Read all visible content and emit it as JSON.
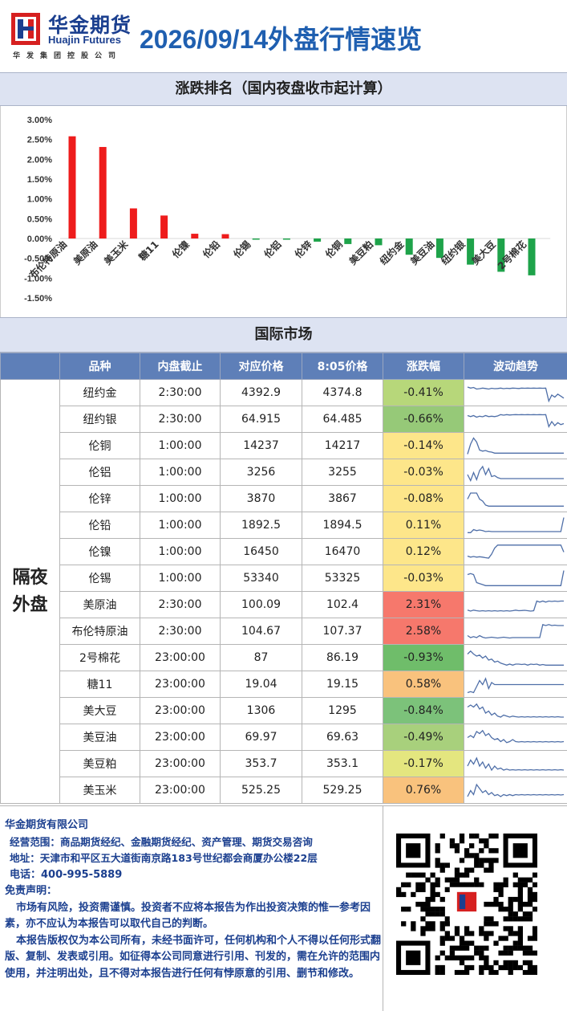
{
  "header": {
    "brand_cn": "华金期货",
    "brand_en": "Huajin Futures",
    "brand_sub": "华发集团控股公司",
    "title": "2026/09/14外盘行情速览"
  },
  "ranking_title": "涨跌排名（国内夜盘收市起计算）",
  "chart_data": {
    "type": "bar",
    "title": "涨跌排名（国内夜盘收市起计算）",
    "categories": [
      "布伦特原油",
      "美原油",
      "美玉米",
      "糖11",
      "伦镍",
      "伦铅",
      "伦锡",
      "伦铝",
      "伦锌",
      "伦铜",
      "美豆粕",
      "纽约金",
      "美豆油",
      "纽约银",
      "美大豆",
      "2号棉花"
    ],
    "values": [
      2.58,
      2.31,
      0.76,
      0.58,
      0.12,
      0.11,
      -0.03,
      -0.03,
      -0.08,
      -0.14,
      -0.17,
      -0.41,
      -0.49,
      -0.66,
      -0.84,
      -0.93
    ],
    "y_ticks": [
      "3.00%",
      "2.50%",
      "2.00%",
      "1.50%",
      "1.00%",
      "0.50%",
      "0.00%",
      "-0.50%",
      "-1.00%",
      "-1.50%"
    ],
    "ylim": [
      -1.5,
      3.0
    ],
    "colors": {
      "positive": "#ee1c1c",
      "negative": "#1ea34a"
    },
    "grid": false
  },
  "intl_title": "国际市场",
  "table": {
    "headers": [
      "",
      "品种",
      "内盘截止",
      "对应价格",
      "8:05价格",
      "涨跌幅",
      "波动趋势"
    ],
    "group_label": "隔夜外盘",
    "rows": [
      {
        "name": "纽约金",
        "cutoff": "2:30:00",
        "ref_price": "4392.9",
        "price_805": "4374.8",
        "change": "-0.41%",
        "color": "#b7d77a",
        "trend": [
          0.2,
          0.25,
          0.22,
          0.3,
          0.28,
          0.25,
          0.27,
          0.3,
          0.26,
          0.28,
          0.27,
          0.25,
          0.28,
          0.26,
          0.27,
          0.25,
          0.26,
          0.27,
          0.25,
          0.26,
          0.25,
          0.26,
          0.25,
          0.26,
          0.25,
          0.26,
          0.25,
          0.9,
          0.6,
          0.7,
          0.55,
          0.65,
          0.75
        ]
      },
      {
        "name": "纽约银",
        "cutoff": "2:30:00",
        "ref_price": "64.915",
        "price_805": "64.485",
        "change": "-0.66%",
        "color": "#96c978",
        "trend": [
          0.3,
          0.35,
          0.3,
          0.38,
          0.33,
          0.36,
          0.3,
          0.35,
          0.33,
          0.35,
          0.32,
          0.25,
          0.28,
          0.25,
          0.27,
          0.26,
          0.25,
          0.26,
          0.25,
          0.26,
          0.25,
          0.26,
          0.25,
          0.26,
          0.25,
          0.26,
          0.25,
          0.85,
          0.6,
          0.8,
          0.65,
          0.75,
          0.7
        ]
      },
      {
        "name": "伦铜",
        "cutoff": "1:00:00",
        "ref_price": "14237",
        "price_805": "14217",
        "change": "-0.14%",
        "color": "#fde68a",
        "trend": [
          0.9,
          0.4,
          0.1,
          0.3,
          0.7,
          0.75,
          0.72,
          0.78,
          0.8,
          0.85,
          0.85,
          0.85,
          0.85,
          0.85,
          0.85,
          0.85,
          0.85,
          0.85,
          0.85,
          0.85,
          0.85,
          0.85,
          0.85,
          0.85,
          0.85,
          0.85,
          0.85,
          0.85,
          0.85,
          0.85,
          0.85,
          0.85,
          0.85
        ]
      },
      {
        "name": "伦铝",
        "cutoff": "1:00:00",
        "ref_price": "3256",
        "price_805": "3255",
        "change": "-0.03%",
        "color": "#fde68a",
        "trend": [
          0.6,
          0.9,
          0.5,
          0.85,
          0.4,
          0.2,
          0.6,
          0.3,
          0.7,
          0.65,
          0.75,
          0.8,
          0.8,
          0.8,
          0.8,
          0.8,
          0.8,
          0.8,
          0.8,
          0.8,
          0.8,
          0.8,
          0.8,
          0.8,
          0.8,
          0.8,
          0.8,
          0.8,
          0.8,
          0.8,
          0.8,
          0.8,
          0.8
        ]
      },
      {
        "name": "伦锌",
        "cutoff": "1:00:00",
        "ref_price": "3870",
        "price_805": "3867",
        "change": "-0.08%",
        "color": "#fde68a",
        "trend": [
          0.5,
          0.2,
          0.2,
          0.2,
          0.5,
          0.6,
          0.8,
          0.85,
          0.85,
          0.85,
          0.85,
          0.85,
          0.85,
          0.85,
          0.85,
          0.85,
          0.85,
          0.85,
          0.85,
          0.85,
          0.85,
          0.85,
          0.85,
          0.85,
          0.85,
          0.85,
          0.85,
          0.85,
          0.85,
          0.85,
          0.85,
          0.85,
          0.85
        ]
      },
      {
        "name": "伦铅",
        "cutoff": "1:00:00",
        "ref_price": "1892.5",
        "price_805": "1894.5",
        "change": "0.11%",
        "color": "#fde68a",
        "trend": [
          0.85,
          0.85,
          0.7,
          0.75,
          0.72,
          0.75,
          0.8,
          0.78,
          0.8,
          0.8,
          0.8,
          0.8,
          0.8,
          0.8,
          0.8,
          0.8,
          0.8,
          0.8,
          0.8,
          0.8,
          0.8,
          0.8,
          0.8,
          0.8,
          0.8,
          0.8,
          0.8,
          0.8,
          0.8,
          0.8,
          0.8,
          0.8,
          0.1
        ]
      },
      {
        "name": "伦镍",
        "cutoff": "1:00:00",
        "ref_price": "16450",
        "price_805": "16470",
        "change": "0.12%",
        "color": "#fde68a",
        "trend": [
          0.7,
          0.75,
          0.72,
          0.75,
          0.73,
          0.75,
          0.78,
          0.8,
          0.6,
          0.3,
          0.15,
          0.15,
          0.15,
          0.15,
          0.15,
          0.15,
          0.15,
          0.15,
          0.15,
          0.15,
          0.15,
          0.15,
          0.15,
          0.15,
          0.15,
          0.15,
          0.15,
          0.15,
          0.15,
          0.15,
          0.15,
          0.15,
          0.5
        ]
      },
      {
        "name": "伦锡",
        "cutoff": "1:00:00",
        "ref_price": "53340",
        "price_805": "53325",
        "change": "-0.03%",
        "color": "#fde68a",
        "trend": [
          0.3,
          0.25,
          0.3,
          0.7,
          0.75,
          0.8,
          0.85,
          0.85,
          0.85,
          0.85,
          0.85,
          0.85,
          0.85,
          0.85,
          0.85,
          0.85,
          0.85,
          0.85,
          0.85,
          0.85,
          0.85,
          0.85,
          0.85,
          0.85,
          0.85,
          0.85,
          0.85,
          0.85,
          0.85,
          0.85,
          0.85,
          0.85,
          0.1
        ]
      },
      {
        "name": "美原油",
        "cutoff": "2:30:00",
        "ref_price": "100.09",
        "price_805": "102.4",
        "change": "2.31%",
        "color": "#f6786c",
        "trend": [
          0.75,
          0.8,
          0.75,
          0.78,
          0.8,
          0.78,
          0.8,
          0.78,
          0.8,
          0.78,
          0.8,
          0.78,
          0.8,
          0.78,
          0.8,
          0.78,
          0.75,
          0.78,
          0.77,
          0.76,
          0.78,
          0.8,
          0.78,
          0.3,
          0.35,
          0.3,
          0.35,
          0.3,
          0.32,
          0.3,
          0.32,
          0.3,
          0.3
        ]
      },
      {
        "name": "布伦特原油",
        "cutoff": "2:30:00",
        "ref_price": "104.67",
        "price_805": "107.37",
        "change": "2.58%",
        "color": "#f6786c",
        "trend": [
          0.7,
          0.8,
          0.75,
          0.8,
          0.7,
          0.78,
          0.82,
          0.8,
          0.78,
          0.8,
          0.82,
          0.8,
          0.78,
          0.8,
          0.82,
          0.8,
          0.8,
          0.8,
          0.8,
          0.8,
          0.8,
          0.8,
          0.8,
          0.8,
          0.8,
          0.15,
          0.2,
          0.15,
          0.2,
          0.18,
          0.2,
          0.2,
          0.2
        ]
      },
      {
        "name": "2号棉花",
        "cutoff": "23:00:00",
        "ref_price": "87",
        "price_805": "86.19",
        "change": "-0.93%",
        "color": "#6fbd6a",
        "trend": [
          0.3,
          0.15,
          0.3,
          0.4,
          0.35,
          0.5,
          0.4,
          0.6,
          0.55,
          0.7,
          0.65,
          0.75,
          0.8,
          0.85,
          0.8,
          0.85,
          0.8,
          0.8,
          0.82,
          0.8,
          0.85,
          0.8,
          0.82,
          0.8,
          0.85,
          0.82,
          0.85,
          0.85,
          0.85,
          0.85,
          0.85,
          0.85,
          0.85
        ]
      },
      {
        "name": "糖11",
        "cutoff": "23:00:00",
        "ref_price": "19.04",
        "price_805": "19.15",
        "change": "0.58%",
        "color": "#f9c27d",
        "trend": [
          0.9,
          0.85,
          0.9,
          0.6,
          0.3,
          0.5,
          0.2,
          0.7,
          0.4,
          0.5,
          0.5,
          0.5,
          0.5,
          0.5,
          0.5,
          0.5,
          0.5,
          0.5,
          0.5,
          0.5,
          0.5,
          0.5,
          0.5,
          0.5,
          0.5,
          0.5,
          0.5,
          0.5,
          0.5,
          0.5,
          0.5,
          0.5,
          0.5
        ]
      },
      {
        "name": "美大豆",
        "cutoff": "23:00:00",
        "ref_price": "1306",
        "price_805": "1295",
        "change": "-0.84%",
        "color": "#7cc27a",
        "trend": [
          0.3,
          0.2,
          0.3,
          0.15,
          0.4,
          0.3,
          0.6,
          0.5,
          0.7,
          0.6,
          0.75,
          0.8,
          0.7,
          0.75,
          0.8,
          0.75,
          0.78,
          0.8,
          0.78,
          0.8,
          0.78,
          0.8,
          0.78,
          0.8,
          0.78,
          0.8,
          0.78,
          0.8,
          0.78,
          0.8,
          0.78,
          0.8,
          0.8
        ]
      },
      {
        "name": "美豆油",
        "cutoff": "23:00:00",
        "ref_price": "69.97",
        "price_805": "69.63",
        "change": "-0.49%",
        "color": "#a8d07c",
        "trend": [
          0.5,
          0.4,
          0.5,
          0.2,
          0.3,
          0.15,
          0.4,
          0.3,
          0.5,
          0.6,
          0.55,
          0.7,
          0.6,
          0.75,
          0.7,
          0.6,
          0.7,
          0.72,
          0.7,
          0.72,
          0.7,
          0.72,
          0.7,
          0.72,
          0.7,
          0.72,
          0.7,
          0.72,
          0.7,
          0.72,
          0.7,
          0.72,
          0.7
        ]
      },
      {
        "name": "美豆粕",
        "cutoff": "23:00:00",
        "ref_price": "353.7",
        "price_805": "353.1",
        "change": "-0.17%",
        "color": "#e4e67f",
        "trend": [
          0.6,
          0.3,
          0.5,
          0.2,
          0.6,
          0.4,
          0.7,
          0.5,
          0.8,
          0.6,
          0.75,
          0.7,
          0.8,
          0.75,
          0.8,
          0.78,
          0.8,
          0.78,
          0.8,
          0.78,
          0.8,
          0.78,
          0.8,
          0.78,
          0.8,
          0.78,
          0.8,
          0.78,
          0.8,
          0.78,
          0.8,
          0.78,
          0.8
        ]
      },
      {
        "name": "美玉米",
        "cutoff": "23:00:00",
        "ref_price": "525.25",
        "price_805": "529.25",
        "change": "0.76%",
        "color": "#f9c27d",
        "trend": [
          0.8,
          0.5,
          0.7,
          0.2,
          0.4,
          0.6,
          0.5,
          0.7,
          0.6,
          0.75,
          0.7,
          0.8,
          0.7,
          0.75,
          0.7,
          0.75,
          0.7,
          0.72,
          0.7,
          0.72,
          0.7,
          0.72,
          0.7,
          0.72,
          0.7,
          0.72,
          0.7,
          0.72,
          0.7,
          0.72,
          0.7,
          0.72,
          0.7
        ]
      }
    ]
  },
  "footer": {
    "company": "华金期货有限公司",
    "scope": "经营范围：商品期货经纪、金融期货经纪、资产管理、期货交易咨询",
    "address": "地址：天津市和平区五大道街南京路183号世纪都会商厦办公楼22层",
    "phone": "电话：400-995-5889",
    "disclaimer_title": "免责声明：",
    "disclaimer_1": "市场有风险，投资需谨慎。投资者不应将本报告为作出投资决策的惟一参考因素，亦不应认为本报告可以取代自己的判断。",
    "disclaimer_2": "本报告版权仅为本公司所有，未经书面许可，任何机构和个人不得以任何形式翻版、复制、发表或引用。如征得本公司同意进行引用、刊发的，需在允许的范围内使用，并注明出处，且不得对本报告进行任何有悖原意的引用、删节和修改。"
  }
}
